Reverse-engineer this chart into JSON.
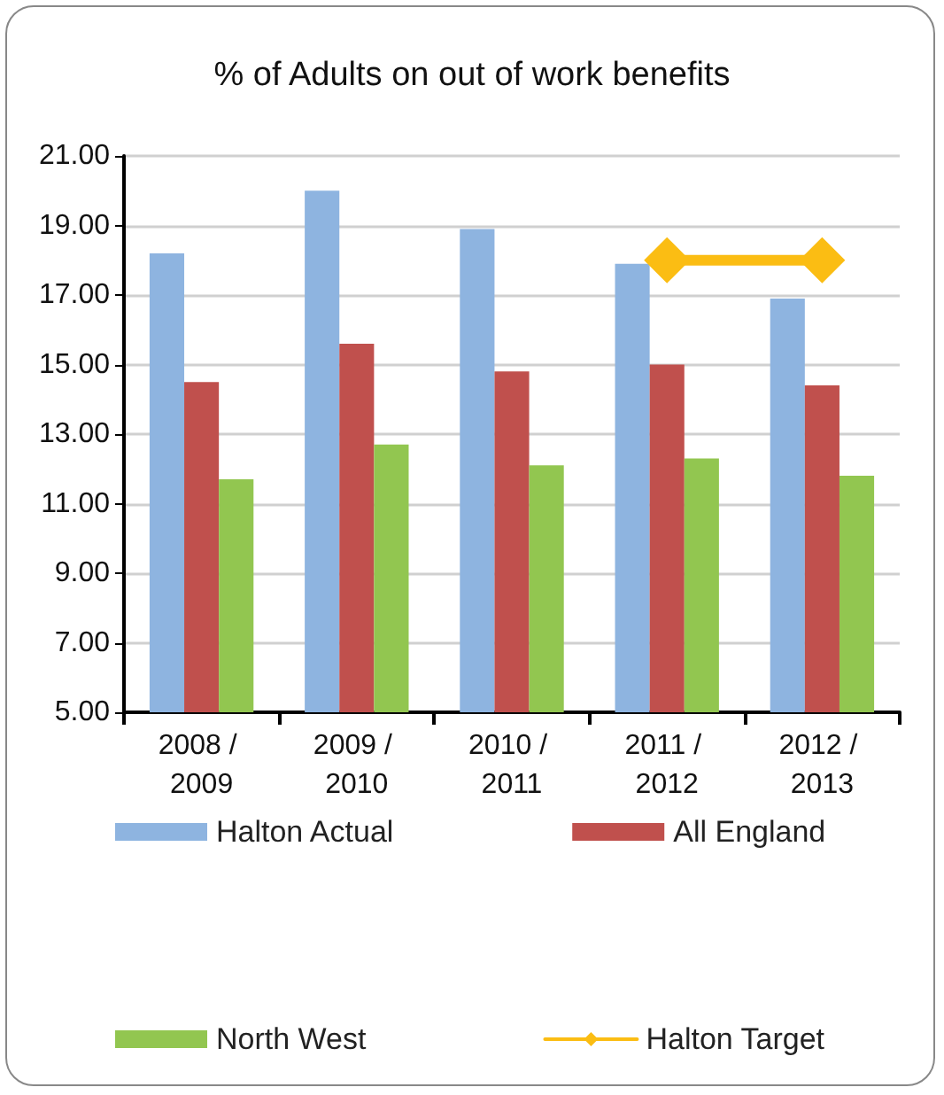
{
  "chart_data": {
    "type": "bar",
    "title": "% of Adults on out of work benefits",
    "categories": [
      "2008 / 2009",
      "2009 / 2010",
      "2010 / 2011",
      "2011 / 2012",
      "2012 / 2013"
    ],
    "series": [
      {
        "name": "Halton Actual",
        "color": "#8eb4e0",
        "values": [
          18.2,
          20.0,
          18.9,
          17.9,
          16.9
        ]
      },
      {
        "name": "All England",
        "color": "#c0504d",
        "values": [
          14.5,
          15.6,
          14.8,
          15.0,
          14.4
        ]
      },
      {
        "name": "North West",
        "color": "#92c650",
        "values": [
          11.7,
          12.7,
          12.1,
          12.3,
          11.8
        ]
      },
      {
        "name": "Halton Target",
        "type": "line",
        "color": "#fbbd13",
        "marker": "diamond",
        "values": [
          null,
          null,
          null,
          18.0,
          18.0
        ]
      }
    ],
    "ylim": [
      5,
      21
    ],
    "yticks": [
      {
        "value": 5,
        "label": "5.00"
      },
      {
        "value": 7,
        "label": "7.00"
      },
      {
        "value": 9,
        "label": "9.00"
      },
      {
        "value": 11,
        "label": "11.00"
      },
      {
        "value": 13,
        "label": "13.00"
      },
      {
        "value": 15,
        "label": "15.00"
      },
      {
        "value": 17,
        "label": "17.00"
      },
      {
        "value": 19,
        "label": "19.00"
      },
      {
        "value": 21,
        "label": "21.00"
      }
    ],
    "grid": "y",
    "legend": "bottom"
  }
}
